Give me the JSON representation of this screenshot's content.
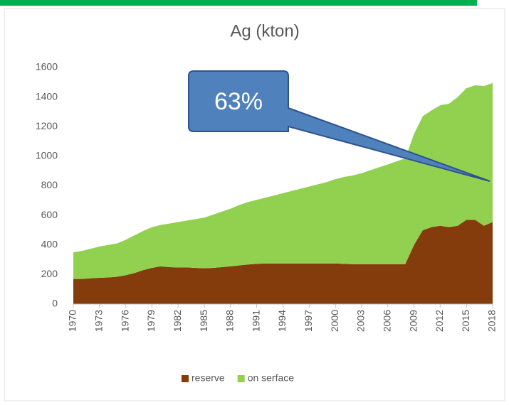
{
  "chart_data": {
    "type": "stacked_area",
    "title": "Ag (kton)",
    "x": [
      1970,
      1971,
      1972,
      1973,
      1974,
      1975,
      1976,
      1977,
      1978,
      1979,
      1980,
      1981,
      1982,
      1983,
      1984,
      1985,
      1986,
      1987,
      1988,
      1989,
      1990,
      1991,
      1992,
      1993,
      1994,
      1995,
      1996,
      1997,
      1998,
      1999,
      2000,
      2001,
      2002,
      2003,
      2004,
      2005,
      2006,
      2007,
      2008,
      2009,
      2010,
      2011,
      2012,
      2013,
      2014,
      2015,
      2016,
      2017,
      2018
    ],
    "series": [
      {
        "name": "reserve",
        "color": "#843c0c",
        "values": [
          170,
          170,
          175,
          178,
          180,
          185,
          195,
          210,
          230,
          245,
          255,
          250,
          248,
          248,
          245,
          242,
          245,
          250,
          255,
          262,
          268,
          272,
          275,
          275,
          275,
          275,
          275,
          275,
          275,
          275,
          275,
          272,
          270,
          270,
          270,
          270,
          270,
          270,
          270,
          400,
          500,
          520,
          530,
          520,
          530,
          570,
          570,
          530,
          555
        ]
      },
      {
        "name": "on serface",
        "color": "#92d050",
        "values": [
          180,
          190,
          200,
          212,
          220,
          225,
          240,
          255,
          265,
          275,
          280,
          295,
          307,
          317,
          330,
          343,
          360,
          375,
          390,
          408,
          422,
          433,
          445,
          460,
          475,
          490,
          505,
          520,
          535,
          550,
          570,
          588,
          600,
          615,
          635,
          655,
          675,
          695,
          715,
          750,
          770,
          790,
          815,
          835,
          870,
          890,
          910,
          945,
          940
        ]
      }
    ],
    "xlim": [
      1970,
      2018
    ],
    "xticks": [
      1970,
      1973,
      1976,
      1979,
      1982,
      1985,
      1988,
      1991,
      1994,
      1997,
      2000,
      2003,
      2006,
      2009,
      2012,
      2015,
      2018
    ],
    "ylim": [
      0,
      1600
    ],
    "yticks": [
      0,
      200,
      400,
      600,
      800,
      1000,
      1200,
      1400,
      1600
    ],
    "grid": false,
    "legend": "bottom",
    "annotation": "63%"
  }
}
